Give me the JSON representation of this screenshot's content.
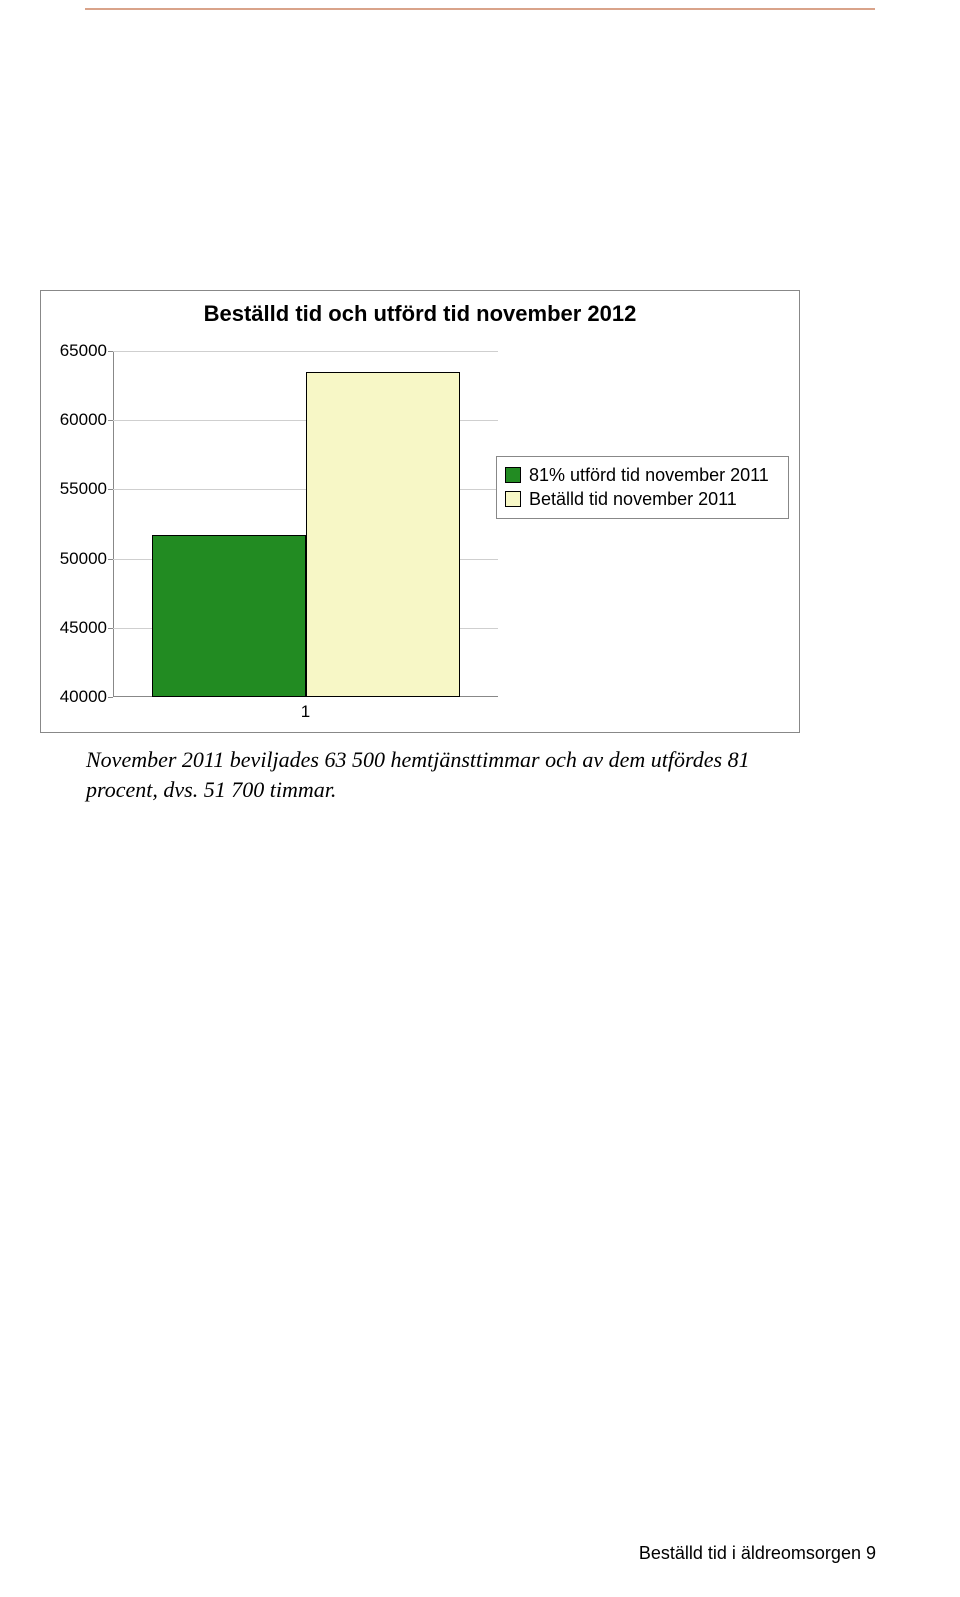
{
  "chart": {
    "type": "bar",
    "title": "Beställd tid och utförd tid november 2012",
    "title_fontsize": 22,
    "title_fontweight": "bold",
    "background_color": "#ffffff",
    "border_color": "#888888",
    "grid_color": "#cfcfcf",
    "axis_color": "#888888",
    "tick_label_fontsize": 17,
    "ylim": [
      40000,
      65000
    ],
    "ytick_step": 5000,
    "yticks": [
      {
        "value": 40000,
        "label": "40000"
      },
      {
        "value": 45000,
        "label": "45000"
      },
      {
        "value": 50000,
        "label": "50000"
      },
      {
        "value": 55000,
        "label": "55000"
      },
      {
        "value": 60000,
        "label": "60000"
      },
      {
        "value": 65000,
        "label": "65000"
      }
    ],
    "x_category_label": "1",
    "x_category_label_fontsize": 17,
    "bars": [
      {
        "name": "81% utförd tid november 2011",
        "value": 51700,
        "fill": "#228b22",
        "border": "#000000"
      },
      {
        "name": "Betälld tid november 2011",
        "value": 63500,
        "fill": "#f7f7c6",
        "border": "#000000"
      }
    ],
    "bar_layout": {
      "bar_width_pct": 40,
      "bar1_left_pct": 10,
      "bar2_left_pct": 50
    },
    "legend": {
      "items": [
        {
          "swatch": "#228b22",
          "label": "81% utförd tid november 2011"
        },
        {
          "swatch": "#f7f7c6",
          "label": "Betälld tid november 2011"
        }
      ],
      "fontsize": 18,
      "border_color": "#888888"
    }
  },
  "caption": "November 2011 beviljades 63 500 hemtjänsttimmar och av dem utfördes 81 procent, dvs. 51 700 timmar.",
  "footer": {
    "text": "Beställd tid i äldreomsorgen",
    "page_number": "9"
  },
  "top_rule_color": "#d9a38a"
}
